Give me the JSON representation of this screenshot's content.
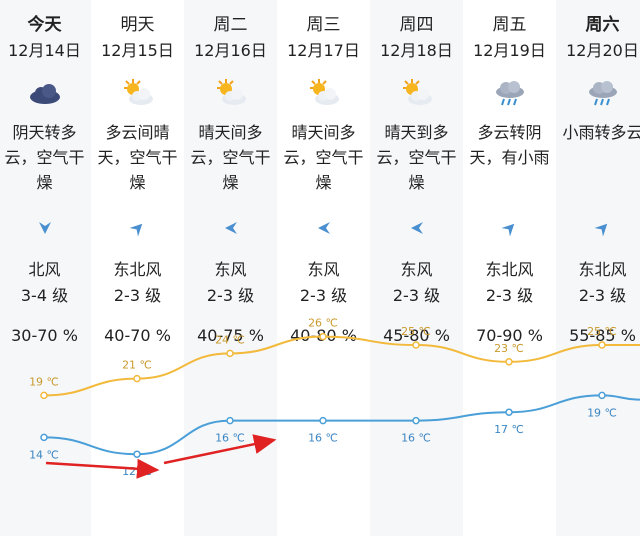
{
  "colors": {
    "stripe": "#f6f7f9",
    "high_line": "#f2b93b",
    "low_line": "#4a9fd8",
    "wind_icon": "#4a8fcf",
    "arrow": "#e02222"
  },
  "days": [
    {
      "name": "今天",
      "date": "12月14日",
      "icon": "cloudy-icon",
      "desc": [
        "阴天转多",
        "云，空气干",
        "燥"
      ],
      "wind_dir": "北风",
      "wind_level": "3-4 级",
      "humidity": "30-70 %",
      "high": "19 ℃",
      "low": "14 ℃",
      "high_val": 19,
      "low_val": 14
    },
    {
      "name": "明天",
      "date": "12月15日",
      "icon": "partly-sunny-icon",
      "desc": [
        "多云间晴",
        "天，空气干",
        "燥"
      ],
      "wind_dir": "东北风",
      "wind_level": "2-3 级",
      "humidity": "40-70 %",
      "high": "21 ℃",
      "low": "12 ℃",
      "high_val": 21,
      "low_val": 12
    },
    {
      "name": "周二",
      "date": "12月16日",
      "icon": "partly-sunny-icon",
      "desc": [
        "晴天间多",
        "云，空气干",
        "燥"
      ],
      "wind_dir": "东风",
      "wind_level": "2-3 级",
      "humidity": "40-75 %",
      "high": "24 ℃",
      "low": "16 ℃",
      "high_val": 24,
      "low_val": 16
    },
    {
      "name": "周三",
      "date": "12月17日",
      "icon": "partly-sunny-icon",
      "desc": [
        "晴天间多",
        "云，空气干",
        "燥"
      ],
      "wind_dir": "东风",
      "wind_level": "2-3 级",
      "humidity": "40-80 %",
      "high": "26 ℃",
      "low": "16 ℃",
      "high_val": 26,
      "low_val": 16
    },
    {
      "name": "周四",
      "date": "12月18日",
      "icon": "partly-sunny-icon",
      "desc": [
        "晴天到多",
        "云，空气干",
        "燥"
      ],
      "wind_dir": "东风",
      "wind_level": "2-3 级",
      "humidity": "45-80 %",
      "high": "25 ℃",
      "low": "16 ℃",
      "high_val": 25,
      "low_val": 16
    },
    {
      "name": "周五",
      "date": "12月19日",
      "icon": "rain-cloud-icon",
      "desc": [
        "多云转阴",
        "天，有小雨"
      ],
      "wind_dir": "东北风",
      "wind_level": "2-3 级",
      "humidity": "70-90 %",
      "high": "23 ℃",
      "low": "17 ℃",
      "high_val": 23,
      "low_val": 17
    },
    {
      "name": "周六",
      "date": "12月20日",
      "icon": "rain-cloud-icon",
      "desc": [
        "小雨转多云"
      ],
      "wind_dir": "东北风",
      "wind_level": "2-3 级",
      "humidity": "55-85 %",
      "high": "25 ℃",
      "low": "19 ℃",
      "high_val": 25,
      "low_val": 19
    }
  ],
  "wind_arrow_dirs": [
    "down",
    "up-right",
    "left",
    "left",
    "left",
    "up-right",
    "up-right"
  ]
}
